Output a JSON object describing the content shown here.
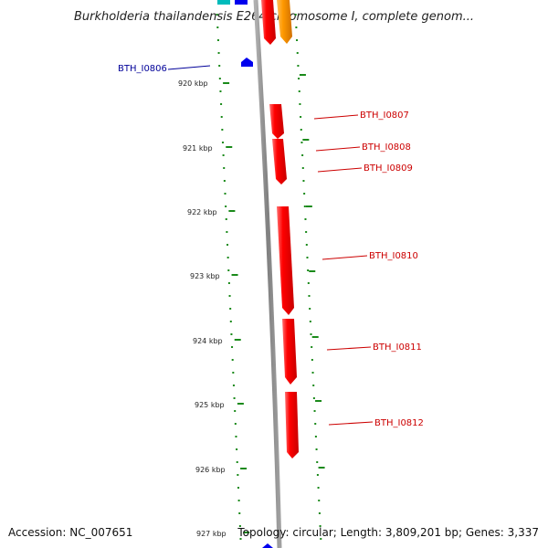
{
  "title": "Burkholderia thailandensis E264 chromosome I, complete genom...",
  "accession": "Accession: NC_007651",
  "summary": "Topology: circular; Length: 3,809,201 bp; Genes: 3,337",
  "colors": {
    "gene_forward": "#ff0000",
    "gene_reverse": "#0000ff",
    "gene_orange": "#ff9900",
    "gene_cyan": "#00bbbb",
    "tick": "#1a8a1a",
    "backbone": "#888888",
    "label_forward": "#cc0000",
    "label_reverse": "#000099"
  },
  "ruler": [
    {
      "label": "920 kbp"
    },
    {
      "label": "921 kbp"
    },
    {
      "label": "922 kbp"
    },
    {
      "label": "923 kbp"
    },
    {
      "label": "924 kbp"
    },
    {
      "label": "925 kbp"
    },
    {
      "label": "926 kbp"
    },
    {
      "label": "927 kbp"
    }
  ],
  "genes": [
    {
      "id": "BTH_I0806",
      "strand": "reverse"
    },
    {
      "id": "BTH_I0807",
      "strand": "forward"
    },
    {
      "id": "BTH_I0808",
      "strand": "forward"
    },
    {
      "id": "BTH_I0809",
      "strand": "forward"
    },
    {
      "id": "BTH_I0810",
      "strand": "forward"
    },
    {
      "id": "BTH_I0811",
      "strand": "forward"
    },
    {
      "id": "BTH_I0812",
      "strand": "forward"
    }
  ]
}
